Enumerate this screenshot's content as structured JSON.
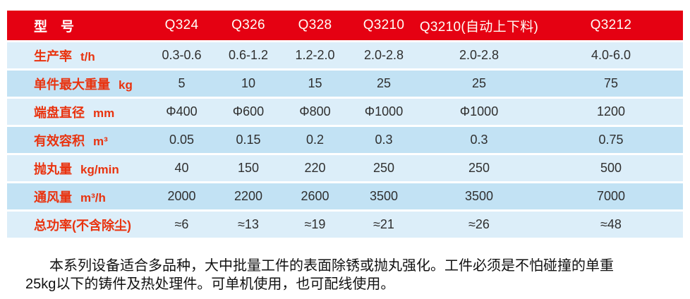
{
  "colors": {
    "header_red": "#e50112",
    "label_red": "#e9330f",
    "row_light_blue": "#dceef9",
    "row_dark_blue": "#c2e2f4",
    "value_text": "#2f2f2f"
  },
  "table": {
    "header": {
      "label": "型　号",
      "models": [
        "Q324",
        "Q326",
        "Q328",
        "Q3210",
        "Q3210(自动上下料)",
        "Q3212"
      ]
    },
    "rows": [
      {
        "label": "生产率",
        "unit": "t/h",
        "values": [
          "0.3-0.6",
          "0.6-1.2",
          "1.2-2.0",
          "2.0-2.8",
          "2.0-2.8",
          "4.0-6.0"
        ]
      },
      {
        "label": "单件最大重量",
        "unit": "kg",
        "values": [
          "5",
          "10",
          "15",
          "25",
          "25",
          "75"
        ]
      },
      {
        "label": "端盘直径",
        "unit": "mm",
        "values": [
          "Φ400",
          "Φ600",
          "Φ800",
          "Φ1000",
          "Φ1000",
          "1200"
        ]
      },
      {
        "label": "有效容积",
        "unit": "m³",
        "values": [
          "0.05",
          "0.15",
          "0.2",
          "0.3",
          "0.3",
          "0.75"
        ]
      },
      {
        "label": "抛丸量",
        "unit": "kg/min",
        "values": [
          "40",
          "150",
          "220",
          "250",
          "250",
          "500"
        ]
      },
      {
        "label": "通风量",
        "unit": "m³/h",
        "values": [
          "2000",
          "2200",
          "2600",
          "3500",
          "3500",
          "7000"
        ]
      },
      {
        "label": "总功率(不含除尘)",
        "unit": "",
        "values": [
          "≈6",
          "≈13",
          "≈19",
          "≈21",
          "≈26",
          "≈48"
        ]
      }
    ]
  },
  "description": {
    "line1": "本系列设备适合多品种，大中批量工件的表面除锈或抛丸强化。工件必须是不怕碰撞的单重",
    "line2": "25kg以下的铸件及热处理件。可单机使用，也可配线使用。"
  }
}
